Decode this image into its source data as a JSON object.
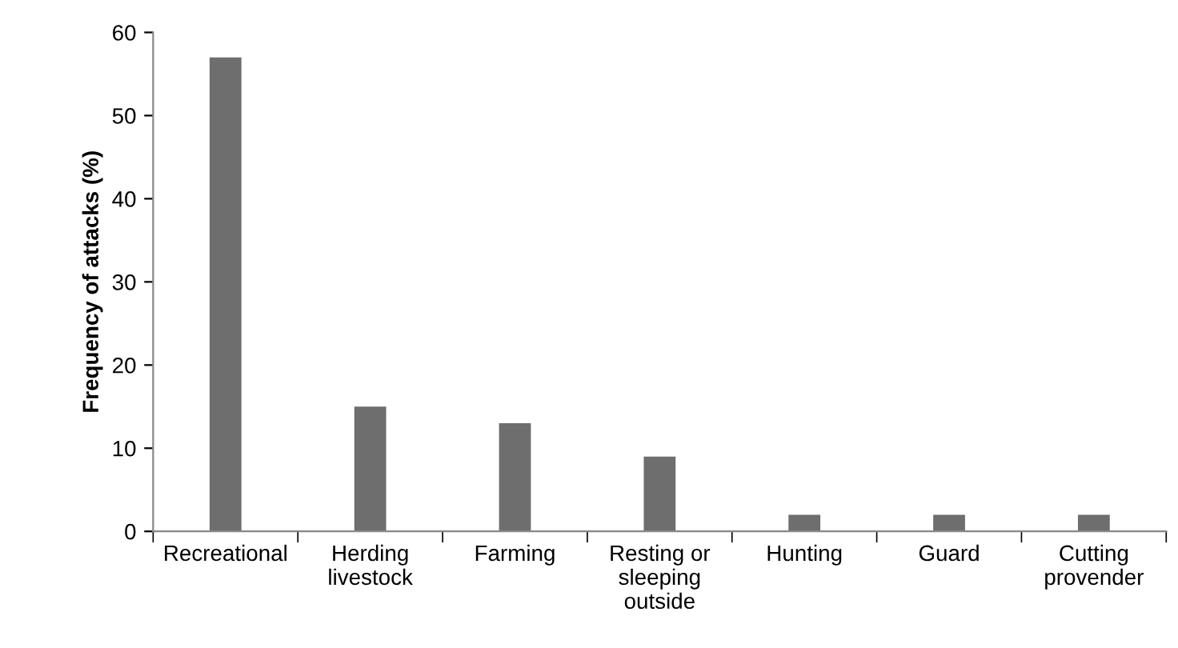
{
  "chart_data": {
    "type": "bar",
    "categories": [
      "Recreational",
      "Herding\nlivestock",
      "Farming",
      "Resting or\nsleeping\noutside",
      "Hunting",
      "Guard",
      "Cutting\nprovender"
    ],
    "values": [
      57,
      15,
      13,
      9,
      2,
      2,
      2
    ],
    "color": "#6e6e6e",
    "ylabel": "Frequency of attacks (%)",
    "ylim": [
      0,
      60
    ],
    "yticks": [
      0,
      10,
      20,
      30,
      40,
      50,
      60
    ],
    "grid": false,
    "legend": false
  }
}
